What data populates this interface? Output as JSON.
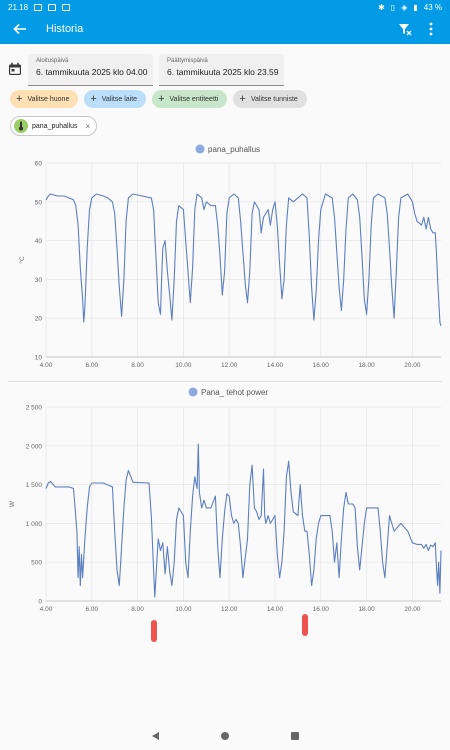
{
  "statusbar": {
    "time": "21.18",
    "battery": "43 %"
  },
  "appbar": {
    "title": "Historia"
  },
  "dates": {
    "start_label": "Aloituspäivä",
    "start_value": "6. tammikuuta 2025 klo 04.00",
    "end_label": "Päättymispäivä",
    "end_value": "6. tammikuuta 2025 klo 23.59"
  },
  "chips": [
    {
      "label": "Valitse huone",
      "color": "#ffe0b2"
    },
    {
      "label": "Valitse laite",
      "color": "#bbdefb"
    },
    {
      "label": "Valitse entiteetti",
      "color": "#c8e6c9"
    },
    {
      "label": "Valitse tunniste",
      "color": "#e0e0e0"
    }
  ],
  "entity_chip": {
    "label": "pana_puhallus"
  },
  "chart_data": [
    {
      "type": "line",
      "legend": "pana_puhallus",
      "color": "#5c7fc0",
      "ylabel": "°C",
      "ylim": [
        10,
        60
      ],
      "yticks": [
        10,
        20,
        30,
        40,
        50,
        60
      ],
      "xlim": [
        4,
        21.25
      ],
      "xticks": [
        "4.00",
        "6.00",
        "8.00",
        "10.00",
        "12.00",
        "14.00",
        "16.00",
        "18.00",
        "20.00"
      ],
      "points": [
        [
          4.0,
          50.5
        ],
        [
          4.1,
          51.5
        ],
        [
          4.2,
          52
        ],
        [
          4.5,
          51.5
        ],
        [
          4.8,
          51.5
        ],
        [
          5.0,
          51
        ],
        [
          5.2,
          50.5
        ],
        [
          5.3,
          49
        ],
        [
          5.4,
          44
        ],
        [
          5.5,
          33
        ],
        [
          5.6,
          25
        ],
        [
          5.65,
          19
        ],
        [
          5.7,
          23
        ],
        [
          5.8,
          38
        ],
        [
          5.9,
          48
        ],
        [
          6.0,
          51
        ],
        [
          6.2,
          52
        ],
        [
          6.5,
          51.5
        ],
        [
          6.7,
          51
        ],
        [
          6.9,
          50
        ],
        [
          7.0,
          47
        ],
        [
          7.1,
          38
        ],
        [
          7.2,
          28
        ],
        [
          7.3,
          20.5
        ],
        [
          7.4,
          30
        ],
        [
          7.5,
          45
        ],
        [
          7.6,
          51
        ],
        [
          7.8,
          52
        ],
        [
          8.2,
          51.5
        ],
        [
          8.6,
          51
        ],
        [
          8.7,
          48
        ],
        [
          8.8,
          36
        ],
        [
          8.9,
          24
        ],
        [
          9.0,
          21
        ],
        [
          9.05,
          30
        ],
        [
          9.1,
          38
        ],
        [
          9.2,
          40
        ],
        [
          9.3,
          32
        ],
        [
          9.4,
          26
        ],
        [
          9.5,
          19.5
        ],
        [
          9.6,
          30
        ],
        [
          9.7,
          45
        ],
        [
          9.8,
          49
        ],
        [
          10.0,
          48
        ],
        [
          10.1,
          40
        ],
        [
          10.2,
          32
        ],
        [
          10.3,
          24
        ],
        [
          10.4,
          33
        ],
        [
          10.5,
          48
        ],
        [
          10.6,
          52
        ],
        [
          10.8,
          51
        ],
        [
          10.9,
          48
        ],
        [
          11.0,
          50
        ],
        [
          11.2,
          49
        ],
        [
          11.4,
          49
        ],
        [
          11.5,
          44
        ],
        [
          11.6,
          36
        ],
        [
          11.7,
          26
        ],
        [
          11.8,
          32
        ],
        [
          11.9,
          47
        ],
        [
          12.0,
          51
        ],
        [
          12.2,
          52
        ],
        [
          12.4,
          51
        ],
        [
          12.5,
          45
        ],
        [
          12.6,
          37
        ],
        [
          12.7,
          29
        ],
        [
          12.8,
          24
        ],
        [
          12.9,
          32
        ],
        [
          13.0,
          47
        ],
        [
          13.1,
          50
        ],
        [
          13.3,
          48
        ],
        [
          13.4,
          42
        ],
        [
          13.5,
          46
        ],
        [
          13.7,
          48
        ],
        [
          13.8,
          44
        ],
        [
          13.9,
          48
        ],
        [
          14.0,
          50
        ],
        [
          14.1,
          44
        ],
        [
          14.2,
          34
        ],
        [
          14.3,
          25
        ],
        [
          14.4,
          30
        ],
        [
          14.5,
          44
        ],
        [
          14.6,
          51
        ],
        [
          14.8,
          50
        ],
        [
          15.0,
          51
        ],
        [
          15.2,
          52
        ],
        [
          15.4,
          51
        ],
        [
          15.5,
          41
        ],
        [
          15.6,
          28
        ],
        [
          15.7,
          19.5
        ],
        [
          15.8,
          27
        ],
        [
          15.9,
          40
        ],
        [
          16.0,
          48
        ],
        [
          16.2,
          52
        ],
        [
          16.5,
          51
        ],
        [
          16.6,
          46
        ],
        [
          16.7,
          37
        ],
        [
          16.8,
          28
        ],
        [
          16.9,
          22
        ],
        [
          17.0,
          30
        ],
        [
          17.1,
          43
        ],
        [
          17.2,
          51
        ],
        [
          17.4,
          52
        ],
        [
          17.6,
          50.5
        ],
        [
          17.7,
          46
        ],
        [
          17.8,
          36
        ],
        [
          17.9,
          25
        ],
        [
          18.0,
          21
        ],
        [
          18.1,
          30
        ],
        [
          18.2,
          44
        ],
        [
          18.3,
          51
        ],
        [
          18.5,
          52
        ],
        [
          18.8,
          51
        ],
        [
          18.9,
          47
        ],
        [
          19.0,
          38
        ],
        [
          19.1,
          28
        ],
        [
          19.2,
          20
        ],
        [
          19.3,
          32
        ],
        [
          19.4,
          46
        ],
        [
          19.5,
          51
        ],
        [
          19.8,
          52
        ],
        [
          20.0,
          50
        ],
        [
          20.1,
          47
        ],
        [
          20.2,
          45
        ],
        [
          20.4,
          44
        ],
        [
          20.5,
          46
        ],
        [
          20.6,
          43
        ],
        [
          20.7,
          46
        ],
        [
          20.8,
          43
        ],
        [
          20.9,
          42
        ],
        [
          21.0,
          42
        ],
        [
          21.05,
          37
        ],
        [
          21.1,
          30
        ],
        [
          21.2,
          19
        ],
        [
          21.25,
          18
        ]
      ]
    },
    {
      "type": "line",
      "legend": "Pana_ tehot power",
      "color": "#5c7fc0",
      "ylabel": "W",
      "ylim": [
        0,
        2500
      ],
      "yticks": [
        0,
        500,
        1000,
        1500,
        2000,
        2500
      ],
      "ytick_labels": [
        "0",
        "500",
        "1 000",
        "1 500",
        "2 000",
        "2 500"
      ],
      "xlim": [
        4,
        21.25
      ],
      "xticks": [
        "4.00",
        "6.00",
        "8.00",
        "10.00",
        "12.00",
        "14.00",
        "16.00",
        "18.00",
        "20.00"
      ],
      "points": [
        [
          4.0,
          1450
        ],
        [
          4.1,
          1520
        ],
        [
          4.2,
          1540
        ],
        [
          4.4,
          1470
        ],
        [
          5.0,
          1470
        ],
        [
          5.2,
          1450
        ],
        [
          5.35,
          900
        ],
        [
          5.4,
          300
        ],
        [
          5.45,
          700
        ],
        [
          5.5,
          200
        ],
        [
          5.55,
          600
        ],
        [
          5.6,
          300
        ],
        [
          5.7,
          800
        ],
        [
          5.8,
          1200
        ],
        [
          5.9,
          1470
        ],
        [
          6.0,
          1520
        ],
        [
          6.5,
          1520
        ],
        [
          6.9,
          1470
        ],
        [
          7.0,
          900
        ],
        [
          7.1,
          400
        ],
        [
          7.2,
          200
        ],
        [
          7.3,
          700
        ],
        [
          7.4,
          1200
        ],
        [
          7.5,
          1560
        ],
        [
          7.6,
          1680
        ],
        [
          7.8,
          1530
        ],
        [
          8.5,
          1520
        ],
        [
          8.6,
          1100
        ],
        [
          8.7,
          400
        ],
        [
          8.75,
          50
        ],
        [
          8.8,
          300
        ],
        [
          8.9,
          800
        ],
        [
          9.0,
          650
        ],
        [
          9.1,
          750
        ],
        [
          9.2,
          350
        ],
        [
          9.3,
          700
        ],
        [
          9.4,
          380
        ],
        [
          9.5,
          200
        ],
        [
          9.6,
          500
        ],
        [
          9.7,
          1050
        ],
        [
          9.8,
          1200
        ],
        [
          10.0,
          1100
        ],
        [
          10.1,
          500
        ],
        [
          10.2,
          300
        ],
        [
          10.3,
          900
        ],
        [
          10.4,
          1350
        ],
        [
          10.5,
          1600
        ],
        [
          10.6,
          1450
        ],
        [
          10.65,
          2020
        ],
        [
          10.7,
          1400
        ],
        [
          10.8,
          1200
        ],
        [
          10.9,
          1300
        ],
        [
          11.0,
          1200
        ],
        [
          11.2,
          1200
        ],
        [
          11.4,
          1350
        ],
        [
          11.5,
          700
        ],
        [
          11.6,
          300
        ],
        [
          11.7,
          800
        ],
        [
          11.8,
          1150
        ],
        [
          11.9,
          1380
        ],
        [
          12.0,
          1350
        ],
        [
          12.1,
          1100
        ],
        [
          12.2,
          1000
        ],
        [
          12.3,
          1050
        ],
        [
          12.4,
          1000
        ],
        [
          12.5,
          700
        ],
        [
          12.6,
          300
        ],
        [
          12.7,
          550
        ],
        [
          12.8,
          800
        ],
        [
          12.9,
          1500
        ],
        [
          13.0,
          1750
        ],
        [
          13.1,
          1200
        ],
        [
          13.2,
          1150
        ],
        [
          13.3,
          1050
        ],
        [
          13.4,
          1100
        ],
        [
          13.5,
          1700
        ],
        [
          13.55,
          1100
        ],
        [
          13.6,
          1000
        ],
        [
          13.7,
          1100
        ],
        [
          13.8,
          1000
        ],
        [
          13.9,
          1050
        ],
        [
          14.0,
          1100
        ],
        [
          14.1,
          600
        ],
        [
          14.2,
          300
        ],
        [
          14.3,
          500
        ],
        [
          14.4,
          900
        ],
        [
          14.5,
          1600
        ],
        [
          14.6,
          1800
        ],
        [
          14.7,
          1400
        ],
        [
          14.8,
          1150
        ],
        [
          15.0,
          1100
        ],
        [
          15.1,
          1500
        ],
        [
          15.2,
          1100
        ],
        [
          15.3,
          900
        ],
        [
          15.4,
          900
        ],
        [
          15.5,
          600
        ],
        [
          15.6,
          200
        ],
        [
          15.7,
          400
        ],
        [
          15.8,
          800
        ],
        [
          15.9,
          1000
        ],
        [
          16.0,
          1100
        ],
        [
          16.4,
          1100
        ],
        [
          16.5,
          900
        ],
        [
          16.6,
          500
        ],
        [
          16.7,
          750
        ],
        [
          16.8,
          300
        ],
        [
          16.9,
          800
        ],
        [
          17.0,
          1200
        ],
        [
          17.1,
          1400
        ],
        [
          17.2,
          1250
        ],
        [
          17.4,
          1250
        ],
        [
          17.5,
          1200
        ],
        [
          17.6,
          700
        ],
        [
          17.7,
          400
        ],
        [
          17.8,
          700
        ],
        [
          17.9,
          1000
        ],
        [
          18.0,
          1200
        ],
        [
          18.5,
          1200
        ],
        [
          18.6,
          900
        ],
        [
          18.7,
          500
        ],
        [
          18.8,
          300
        ],
        [
          18.9,
          700
        ],
        [
          19.0,
          1100
        ],
        [
          19.2,
          900
        ],
        [
          19.5,
          1000
        ],
        [
          19.8,
          900
        ],
        [
          20.0,
          750
        ],
        [
          20.2,
          730
        ],
        [
          20.4,
          730
        ],
        [
          20.5,
          680
        ],
        [
          20.6,
          730
        ],
        [
          20.7,
          650
        ],
        [
          20.8,
          720
        ],
        [
          20.9,
          700
        ],
        [
          21.0,
          750
        ],
        [
          21.05,
          450
        ],
        [
          21.1,
          200
        ],
        [
          21.15,
          500
        ],
        [
          21.2,
          100
        ],
        [
          21.25,
          650
        ]
      ]
    }
  ]
}
